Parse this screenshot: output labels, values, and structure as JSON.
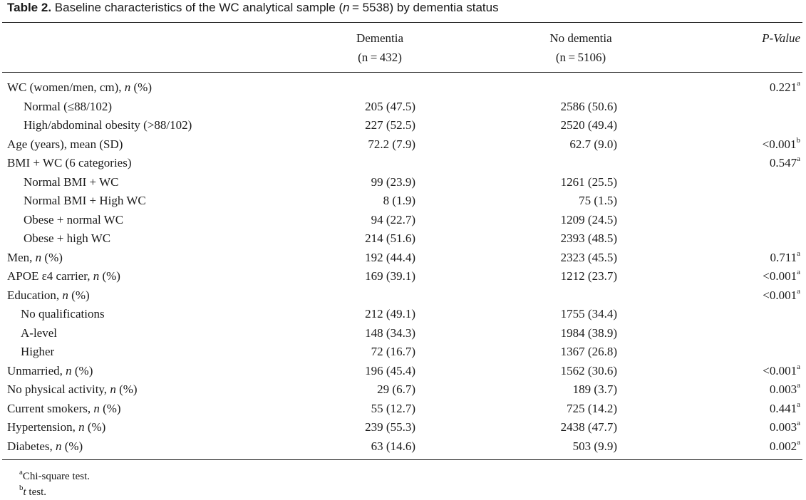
{
  "caption": {
    "label": "Table 2.",
    "text_before_n": " Baseline characteristics of the WC analytical sample (",
    "n_symbol": "n",
    "text_after_n": " = 5538) by dementia status"
  },
  "headers": {
    "dementia": "Dementia",
    "dementia_n": "(n = 432)",
    "no_dementia": "No dementia",
    "no_dementia_n": "(n = 5106)",
    "pvalue": "P-Value"
  },
  "rows": [
    {
      "label": "WC (women/men, cm), n (%)",
      "dementia": "",
      "no_dementia": "",
      "p": "0.221",
      "p_sup": "a",
      "indent": 0
    },
    {
      "label": "Normal (≤88/102)",
      "dementia": "205 (47.5)",
      "no_dementia": "2586 (50.6)",
      "p": "",
      "p_sup": "",
      "indent": 1
    },
    {
      "label": "High/abdominal obesity (>88/102)",
      "dementia": "227 (52.5)",
      "no_dementia": "2520 (49.4)",
      "p": "",
      "p_sup": "",
      "indent": 1
    },
    {
      "label": "Age (years), mean (SD)",
      "dementia": "72.2 (7.9)",
      "no_dementia": "62.7 (9.0)",
      "p": "<0.001",
      "p_sup": "b",
      "indent": 0
    },
    {
      "label": "BMI + WC (6 categories)",
      "dementia": "",
      "no_dementia": "",
      "p": "0.547",
      "p_sup": "a",
      "indent": 0
    },
    {
      "label": "Normal BMI + WC",
      "dementia": "99 (23.9)",
      "no_dementia": "1261 (25.5)",
      "p": "",
      "p_sup": "",
      "indent": 1
    },
    {
      "label": "Normal BMI + High WC",
      "dementia": "8 (1.9)",
      "no_dementia": "75 (1.5)",
      "p": "",
      "p_sup": "",
      "indent": 1
    },
    {
      "label": "Obese + normal WC",
      "dementia": "94 (22.7)",
      "no_dementia": "1209 (24.5)",
      "p": "",
      "p_sup": "",
      "indent": 1
    },
    {
      "label": "Obese + high WC",
      "dementia": "214 (51.6)",
      "no_dementia": "2393 (48.5)",
      "p": "",
      "p_sup": "",
      "indent": 1
    },
    {
      "label": "Men, n (%)",
      "dementia": "192 (44.4)",
      "no_dementia": "2323 (45.5)",
      "p": "0.711",
      "p_sup": "a",
      "indent": 0
    },
    {
      "label": "APOE ε4 carrier, n (%)",
      "dementia": "169 (39.1)",
      "no_dementia": "1212 (23.7)",
      "p": "<0.001",
      "p_sup": "a",
      "indent": 0
    },
    {
      "label": "Education, n (%)",
      "dementia": "",
      "no_dementia": "",
      "p": "<0.001",
      "p_sup": "a",
      "indent": 0
    },
    {
      "label": "No qualifications",
      "dementia": "212 (49.1)",
      "no_dementia": "1755 (34.4)",
      "p": "",
      "p_sup": "",
      "indent": 2
    },
    {
      "label": "A-level",
      "dementia": "148 (34.3)",
      "no_dementia": "1984 (38.9)",
      "p": "",
      "p_sup": "",
      "indent": 2
    },
    {
      "label": "Higher",
      "dementia": "72 (16.7)",
      "no_dementia": "1367 (26.8)",
      "p": "",
      "p_sup": "",
      "indent": 2
    },
    {
      "label": "Unmarried, n (%)",
      "dementia": "196 (45.4)",
      "no_dementia": "1562 (30.6)",
      "p": "<0.001",
      "p_sup": "a",
      "indent": 0
    },
    {
      "label": "No physical activity, n (%)",
      "dementia": "29 (6.7)",
      "no_dementia": "189 (3.7)",
      "p": "0.003",
      "p_sup": "a",
      "indent": 0
    },
    {
      "label": "Current smokers, n (%)",
      "dementia": "55 (12.7)",
      "no_dementia": "725 (14.2)",
      "p": "0.441",
      "p_sup": "a",
      "indent": 0
    },
    {
      "label": "Hypertension, n (%)",
      "dementia": "239 (55.3)",
      "no_dementia": "2438 (47.7)",
      "p": "0.003",
      "p_sup": "a",
      "indent": 0
    },
    {
      "label": "Diabetes, n (%)",
      "dementia": "63 (14.6)",
      "no_dementia": "503 (9.9)",
      "p": "0.002",
      "p_sup": "a",
      "indent": 0
    }
  ],
  "footnotes": [
    {
      "mark": "a",
      "text": "Chi-square test."
    },
    {
      "mark": "b",
      "text": "t test."
    }
  ]
}
